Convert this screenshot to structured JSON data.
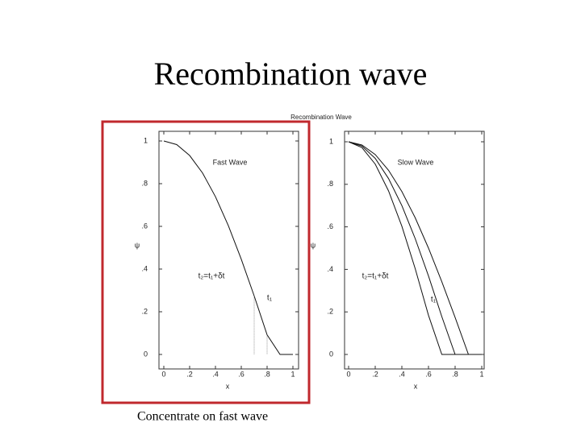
{
  "title": "Recombination wave",
  "figure_title": "Recombination Wave",
  "caption": "Concentrate on fast wave",
  "chart_data": [
    {
      "type": "line",
      "xlabel": "x",
      "ylabel": "ψ",
      "annotations": [
        "Fast Wave",
        "t₂=t₁+δt",
        "t₁"
      ],
      "x": [
        0,
        0.1,
        0.2,
        0.3,
        0.4,
        0.5,
        0.6,
        0.7,
        0.8,
        0.9,
        1
      ],
      "series": [
        {
          "color": "#111111",
          "values": [
            1,
            0.983,
            0.932,
            0.85,
            0.739,
            0.603,
            0.446,
            0.274,
            0.092,
            0,
            0
          ]
        }
      ],
      "xlim": [
        0,
        1
      ],
      "ylim": [
        0,
        1
      ],
      "xticks": [
        0,
        {
          "value": 0.2,
          "label": ".2"
        },
        {
          "value": 0.4,
          "label": ".4"
        },
        {
          "value": 0.6,
          "label": ".6"
        },
        {
          "value": 0.8,
          "label": ".8"
        },
        1
      ],
      "yticks": [
        0,
        {
          "value": 0.2,
          "label": ".2"
        },
        {
          "value": 0.4,
          "label": ".4"
        },
        {
          "value": 0.6,
          "label": ".6"
        },
        {
          "value": 0.8,
          "label": ".8"
        },
        1
      ]
    },
    {
      "type": "line",
      "xlabel": "x",
      "ylabel": "ψ",
      "annotations": [
        "Slow Wave",
        "t₂=t₁+δt",
        "t₁"
      ],
      "x": [
        0,
        0.1,
        0.2,
        0.3,
        0.4,
        0.5,
        0.6,
        0.7,
        0.8,
        0.9,
        1
      ],
      "series": [
        {
          "color": "#111111",
          "values": [
            1,
            0.973,
            0.895,
            0.769,
            0.603,
            0.404,
            0.184,
            0,
            0,
            0,
            0
          ]
        },
        {
          "color": "#111111",
          "values": [
            1,
            0.98,
            0.922,
            0.827,
            0.7,
            0.545,
            0.369,
            0.178,
            0,
            0,
            0
          ]
        },
        {
          "color": "#111111",
          "values": [
            1,
            0.985,
            0.94,
            0.866,
            0.766,
            0.643,
            0.5,
            0.342,
            0.174,
            0,
            0
          ]
        }
      ],
      "xlim": [
        0,
        1
      ],
      "ylim": [
        0,
        1
      ],
      "xticks": [
        0,
        {
          "value": 0.2,
          "label": ".2"
        },
        {
          "value": 0.4,
          "label": ".4"
        },
        {
          "value": 0.6,
          "label": ".6"
        },
        {
          "value": 0.8,
          "label": ".8"
        },
        1
      ],
      "yticks": [
        0,
        {
          "value": 0.2,
          "label": ".2"
        },
        {
          "value": 0.4,
          "label": ".4"
        },
        {
          "value": 0.6,
          "label": ".6"
        },
        {
          "value": 0.8,
          "label": ".8"
        },
        1
      ]
    }
  ]
}
